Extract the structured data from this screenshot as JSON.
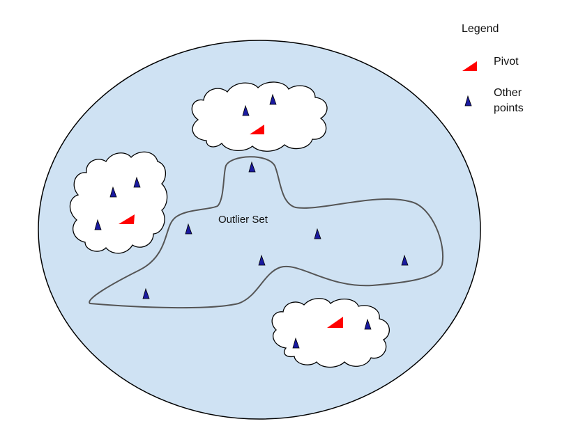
{
  "diagram": {
    "outlier_label": "Outlier Set",
    "colors": {
      "background_ellipse": "#cfe2f3",
      "outline": "#000000",
      "outlier_boundary": "#555555",
      "pivot": "#ff0000",
      "point": "#1a1aa0"
    }
  },
  "legend": {
    "title": "Legend",
    "pivot_label": "Pivot",
    "points_label_line1": "Other",
    "points_label_line2": "points"
  }
}
